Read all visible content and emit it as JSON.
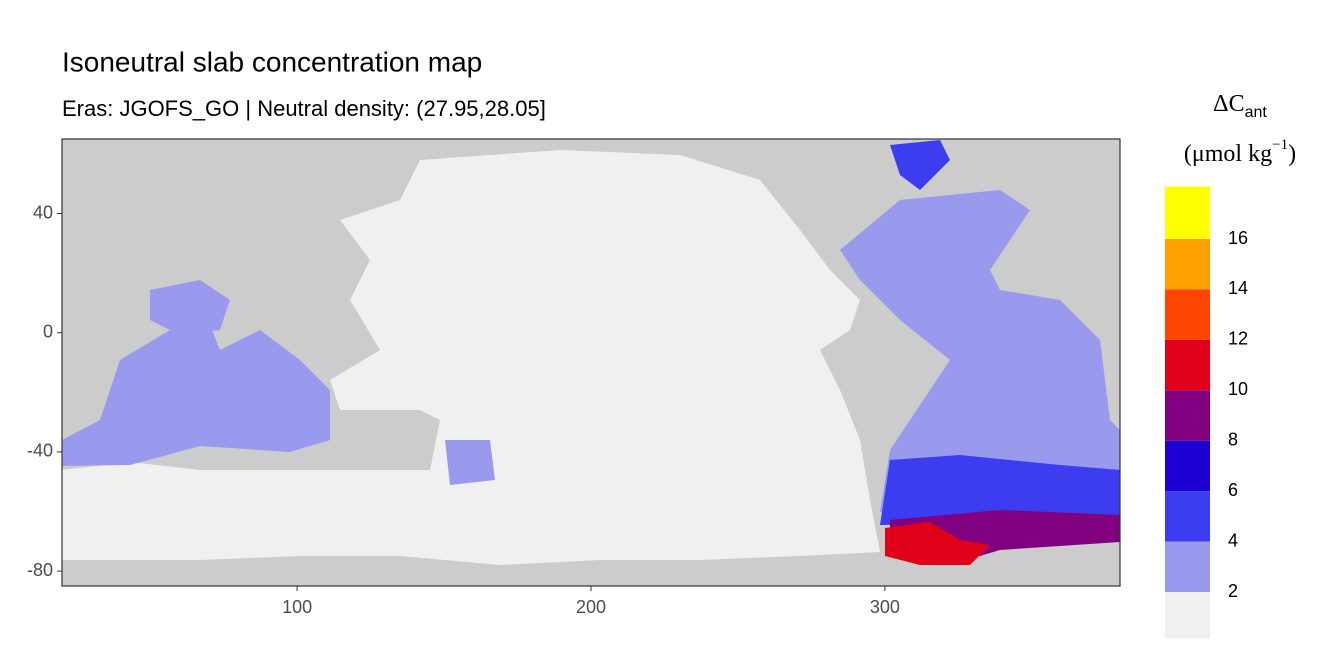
{
  "chart_data": {
    "type": "map",
    "title": "Isoneutral slab concentration map",
    "subtitle": "Eras: JGOFS_GO | Neutral density: (27.95,28.05]",
    "legend_title": {
      "main": "ΔC",
      "sub": "ant"
    },
    "legend_unit": {
      "open": "(μmol kg",
      "sup": "−1",
      "close": ")"
    },
    "xlim": [
      20,
      380
    ],
    "xticks": [
      100,
      200,
      300
    ],
    "ylim": [
      -85,
      65
    ],
    "yticks": [
      40,
      0,
      -40,
      -80
    ],
    "land_color": "#cccccc",
    "legend_breaks": [
      2,
      4,
      6,
      8,
      10,
      12,
      14,
      16
    ],
    "legend_colors": [
      "#f0f0f0",
      "#9999ee",
      "#3c3cf0",
      "#1c00d4",
      "#800080",
      "#e0001a",
      "#ff4500",
      "#ffa000",
      "#ffff00"
    ]
  }
}
